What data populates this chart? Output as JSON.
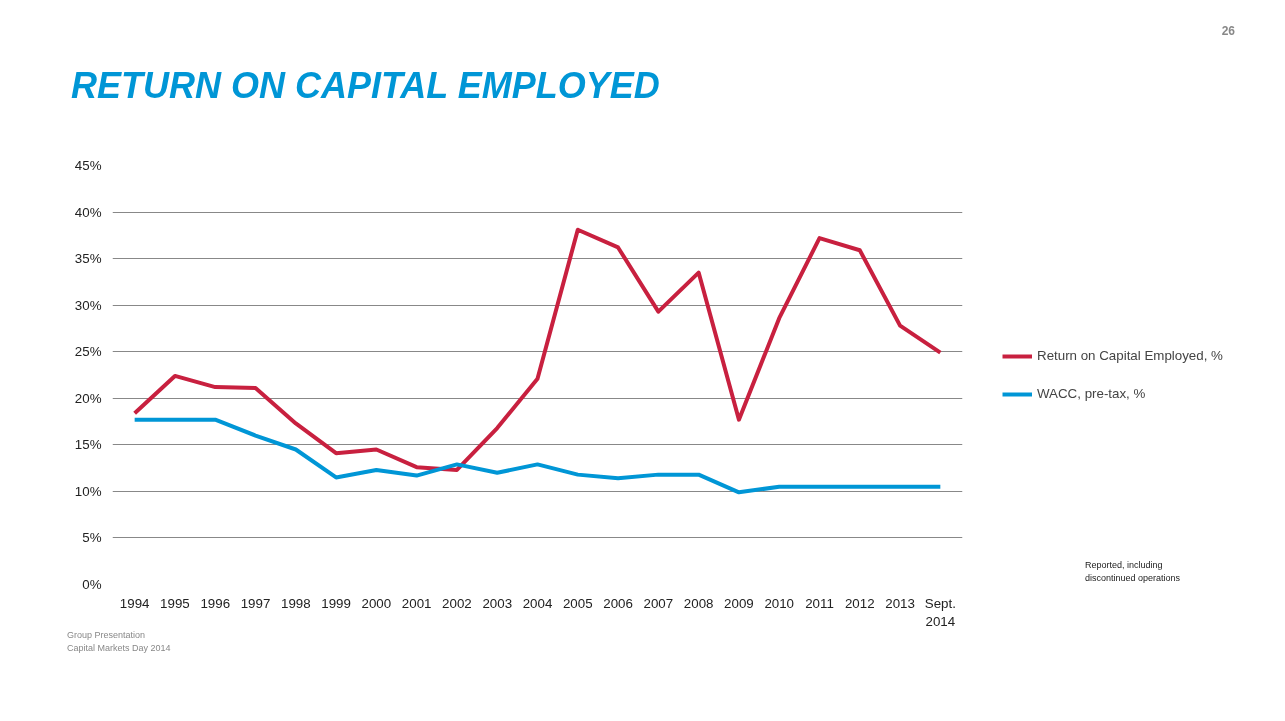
{
  "chart_data": {
    "type": "line",
    "title": "RETURN ON CAPITAL EMPLOYED",
    "categories": [
      "1994",
      "1995",
      "1996",
      "1997",
      "1998",
      "1999",
      "2000",
      "2001",
      "2002",
      "2003",
      "2004",
      "2005",
      "2006",
      "2007",
      "2008",
      "2009",
      "2010",
      "2011",
      "2012",
      "2013",
      "Sept.\n2014"
    ],
    "series": [
      {
        "name": "Return on Capital Employed, %",
        "color": "#c8203f",
        "values": [
          18.4,
          22.4,
          21.2,
          21.1,
          17.3,
          14.1,
          14.5,
          12.6,
          12.3,
          16.8,
          22.1,
          38.1,
          36.2,
          29.3,
          33.5,
          17.7,
          28.6,
          37.2,
          35.9,
          27.8,
          24.9
        ]
      },
      {
        "name": "WACC, pre-tax, %",
        "color": "#0096d6",
        "values": [
          17.7,
          17.7,
          17.7,
          16.0,
          14.5,
          11.5,
          12.3,
          11.7,
          12.9,
          12.0,
          12.9,
          11.8,
          11.4,
          11.8,
          11.8,
          9.9,
          10.5,
          10.5,
          10.5,
          10.5,
          10.5
        ]
      }
    ],
    "ylim": [
      0,
      45
    ],
    "yticks": [
      {
        "value": 0,
        "label": "0%"
      },
      {
        "value": 5,
        "label": "5%"
      },
      {
        "value": 10,
        "label": "10%"
      },
      {
        "value": 15,
        "label": "15%"
      },
      {
        "value": 20,
        "label": "20%"
      },
      {
        "value": 25,
        "label": "25%"
      },
      {
        "value": 30,
        "label": "30%"
      },
      {
        "value": 35,
        "label": "35%"
      },
      {
        "value": 40,
        "label": "40%"
      },
      {
        "value": 45,
        "label": "45%"
      }
    ],
    "grid": "y",
    "legend": "right",
    "marker": "none",
    "line_style": "solid",
    "annotations": [
      "26",
      "Reported, including\ndiscontinued operations",
      "Group Presentation\nCapital Markets Day 2014"
    ]
  }
}
